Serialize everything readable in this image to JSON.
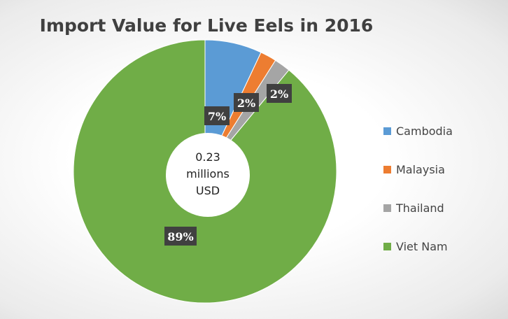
{
  "chart_data": {
    "type": "pie",
    "title": "Import Value for Live Eels in 2016",
    "center_label": [
      "0.23",
      "millions",
      "USD"
    ],
    "categories": [
      "Cambodia",
      "Malaysia",
      "Thailand",
      "Viet Nam"
    ],
    "values": [
      7,
      2,
      2,
      89
    ],
    "data_labels": [
      "7%",
      "2%",
      "2%",
      "89%"
    ],
    "colors": [
      "#5b9bd5",
      "#ed7d31",
      "#a5a5a5",
      "#70ad47"
    ],
    "legend": "right"
  }
}
